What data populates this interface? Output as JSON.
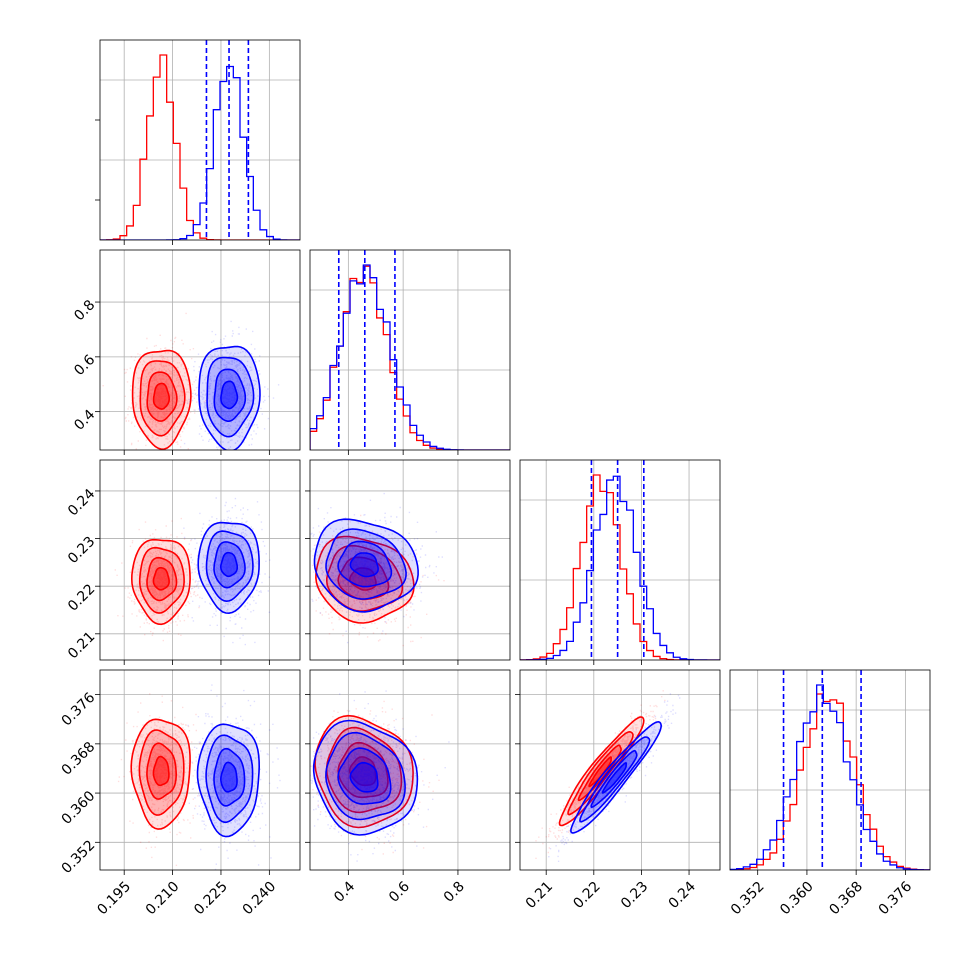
{
  "chart_data": {
    "type": "corner",
    "colors": {
      "red": "#ff0000",
      "blue": "#0000ff"
    },
    "grid": true,
    "params": [
      {
        "range": [
          0.1875,
          0.2495
        ],
        "ticks": [
          "0.195",
          "0.210",
          "0.225",
          "0.240"
        ],
        "tickvals": [
          0.195,
          0.21,
          0.225,
          0.24
        ]
      },
      {
        "range": [
          0.26,
          0.99
        ],
        "ticks": [
          "0.4",
          "0.6",
          "0.8"
        ],
        "tickvals": [
          0.4,
          0.6,
          0.8
        ]
      },
      {
        "range": [
          0.2045,
          0.2465
        ],
        "ticks": [
          "0.21",
          "0.22",
          "0.23",
          "0.24"
        ],
        "tickvals": [
          0.21,
          0.22,
          0.23,
          0.24
        ]
      },
      {
        "range": [
          0.3475,
          0.38
        ],
        "ticks": [
          "0.352",
          "0.360",
          "0.368",
          "0.376"
        ],
        "tickvals": [
          0.352,
          0.36,
          0.368,
          0.376
        ]
      }
    ],
    "series": [
      {
        "color": "red",
        "mean": [
          0.2065,
          0.455,
          0.2215,
          0.3635
        ],
        "sd": [
          0.0043,
          0.085,
          0.0042,
          0.0042
        ],
        "rho": {
          "0-1": 0,
          "0-2": 0,
          "0-3": 0,
          "1-2": -0.12,
          "1-3": -0.12,
          "2-3": 0.95
        }
      },
      {
        "color": "blue",
        "mean": [
          0.2275,
          0.46,
          0.2245,
          0.3625
        ],
        "sd": [
          0.0045,
          0.09,
          0.0045,
          0.0043
        ],
        "rho": {
          "0-1": 0,
          "0-2": 0,
          "0-3": 0,
          "1-2": -0.12,
          "1-3": -0.12,
          "2-3": 0.95
        }
      }
    ],
    "quantile_lines": [
      [
        0.2205,
        0.2275,
        0.2335
      ],
      [
        0.365,
        0.46,
        0.57
      ],
      [
        0.2195,
        0.225,
        0.2305
      ],
      [
        0.3562,
        0.3625,
        0.3688
      ]
    ]
  }
}
